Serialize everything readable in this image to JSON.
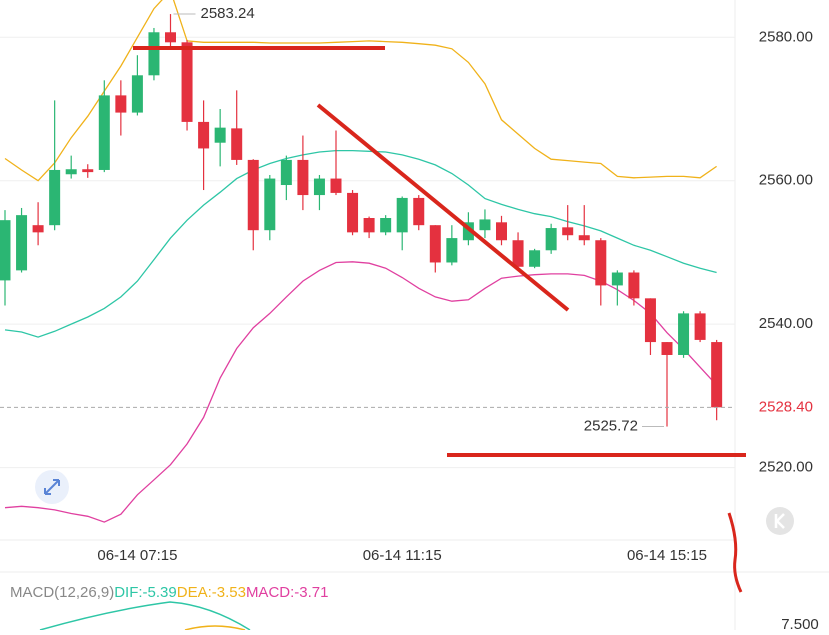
{
  "chart_data": {
    "type": "candlestick",
    "categories": [
      null,
      null,
      null,
      null,
      null,
      null,
      null,
      null,
      "06-14 07:15",
      null,
      null,
      null,
      null,
      null,
      null,
      null,
      null,
      null,
      null,
      null,
      null,
      null,
      null,
      null,
      "06-14 11:15",
      null,
      null,
      null,
      null,
      null,
      null,
      null,
      null,
      null,
      null,
      null,
      null,
      null,
      null,
      null,
      "06-14 15:15",
      null,
      null,
      null
    ],
    "open": [
      2546.1,
      2547.5,
      2553.8,
      2553.8,
      2560.9,
      2561.6,
      2561.5,
      2571.9,
      2569.5,
      2574.7,
      2580.7,
      2579.3,
      2568.2,
      2565.3,
      2567.3,
      2562.9,
      2553.1,
      2559.4,
      2562.9,
      2558.0,
      2560.3,
      2558.3,
      2554.8,
      2552.8,
      2552.8,
      2557.6,
      2553.8,
      2548.6,
      2551.7,
      2553.1,
      2554.2,
      2551.7,
      2548.0,
      2550.3,
      2553.5,
      2552.4,
      2551.7,
      2545.4,
      2547.2,
      2543.6,
      2537.5,
      2535.7,
      2541.5,
      2537.5
    ],
    "high": [
      2555.9,
      2556.2,
      2557.0,
      2571.2,
      2563.5,
      2562.3,
      2574.0,
      2574.0,
      2577.5,
      2581.3,
      2583.24,
      2579.6,
      2571.2,
      2570.0,
      2572.6,
      2563.0,
      2560.8,
      2563.5,
      2566.3,
      2560.8,
      2567.0,
      2558.7,
      2555.0,
      2555.2,
      2557.8,
      2558.0,
      2553.8,
      2553.8,
      2555.6,
      2556.0,
      2555.1,
      2552.8,
      2550.5,
      2554.0,
      2556.6,
      2556.6,
      2552.0,
      2547.5,
      2547.5,
      2543.6,
      2537.5,
      2541.8,
      2541.8,
      2537.8
    ],
    "low": [
      2542.6,
      2547.2,
      2551.0,
      2553.1,
      2560.3,
      2560.4,
      2561.2,
      2566.3,
      2569.1,
      2574.0,
      2578.5,
      2567.0,
      2558.7,
      2562.0,
      2562.2,
      2550.3,
      2551.7,
      2557.3,
      2555.9,
      2555.9,
      2558.0,
      2552.4,
      2552.0,
      2552.4,
      2550.3,
      2553.1,
      2547.2,
      2548.2,
      2551.0,
      2552.0,
      2551.0,
      2547.6,
      2547.8,
      2549.8,
      2551.7,
      2551.0,
      2542.6,
      2542.6,
      2542.6,
      2535.7,
      2525.72,
      2535.3,
      2537.5,
      2526.6
    ],
    "close": [
      2554.5,
      2555.2,
      2552.8,
      2561.5,
      2561.6,
      2561.2,
      2571.9,
      2569.5,
      2574.7,
      2580.7,
      2579.3,
      2568.2,
      2564.5,
      2567.4,
      2562.9,
      2553.1,
      2560.3,
      2562.9,
      2558.0,
      2560.3,
      2558.3,
      2552.8,
      2552.8,
      2554.8,
      2557.6,
      2553.8,
      2548.6,
      2552.0,
      2554.2,
      2554.6,
      2551.7,
      2548.0,
      2550.3,
      2553.4,
      2552.4,
      2551.7,
      2545.4,
      2547.2,
      2543.6,
      2537.5,
      2535.7,
      2541.5,
      2537.8,
      2528.4
    ],
    "up_color": "#2bb673",
    "down_color": "#e4313f",
    "bands": [
      {
        "color": "#f0b21a",
        "values": [
          2563.1,
          2561.5,
          2560.0,
          2562.5,
          2566.0,
          2569.0,
          2572.5,
          2576.0,
          2580.0,
          2584.0,
          2586.5,
          2579.5,
          2579.3,
          2579.3,
          2579.3,
          2579.3,
          2579.2,
          2579.2,
          2579.2,
          2579.2,
          2579.3,
          2579.4,
          2579.5,
          2579.4,
          2579.3,
          2579.1,
          2578.9,
          2578.4,
          2576.5,
          2573.5,
          2568.5,
          2566.5,
          2564.5,
          2563.0,
          2562.8,
          2562.6,
          2562.4,
          2560.6,
          2560.4,
          2560.5,
          2560.6,
          2560.6,
          2560.4,
          2562.0
        ]
      },
      {
        "color": "#2ec6a6",
        "values": [
          2539.2,
          2538.9,
          2538.2,
          2539.0,
          2540.0,
          2541.0,
          2542.2,
          2543.8,
          2546.0,
          2549.0,
          2552.0,
          2554.5,
          2556.6,
          2558.4,
          2560.3,
          2561.5,
          2562.4,
          2563.1,
          2563.6,
          2564.0,
          2564.2,
          2564.2,
          2564.1,
          2564.0,
          2563.6,
          2563.0,
          2562.2,
          2561.0,
          2559.4,
          2557.5,
          2556.7,
          2556.0,
          2555.4,
          2555.0,
          2554.3,
          2553.7,
          2553.0,
          2552.0,
          2551.0,
          2550.3,
          2549.4,
          2548.5,
          2547.8,
          2547.2
        ]
      },
      {
        "color": "#e040a0",
        "values": [
          2514.4,
          2514.6,
          2514.4,
          2514.1,
          2513.6,
          2513.2,
          2512.4,
          2513.5,
          2516.2,
          2518.3,
          2520.4,
          2523.3,
          2527.0,
          2532.5,
          2536.6,
          2539.5,
          2541.5,
          2543.8,
          2546.0,
          2547.5,
          2548.6,
          2548.7,
          2548.5,
          2547.8,
          2546.5,
          2545.0,
          2543.8,
          2543.2,
          2543.4,
          2545.0,
          2546.4,
          2546.7,
          2546.9,
          2547.0,
          2547.0,
          2546.8,
          2546.0,
          2544.8,
          2543.3,
          2541.5,
          2538.8,
          2536.5,
          2534.0,
          2531.5
        ]
      }
    ],
    "ylim": [
      2509.9,
      2585.2
    ],
    "yticks": [
      {
        "value": 2580,
        "label": "2580.00"
      },
      {
        "value": 2560,
        "label": "2560.00"
      },
      {
        "value": 2540,
        "label": "2540.00"
      },
      {
        "value": 2520,
        "label": "2520.00"
      }
    ],
    "grid": true,
    "max_label": "2583.24",
    "min_label": "2525.72",
    "last_label": "2528.40",
    "indicator": {
      "name": "MACD(12,26,9)",
      "items": [
        {
          "text": "DIF:-5.39",
          "color": "#2ec6a6"
        },
        {
          "text": "DEA:-3.53",
          "color": "#f0b21a"
        },
        {
          "text": "MACD:-3.71",
          "color": "#e040a0"
        }
      ],
      "tick": "7.500"
    }
  }
}
